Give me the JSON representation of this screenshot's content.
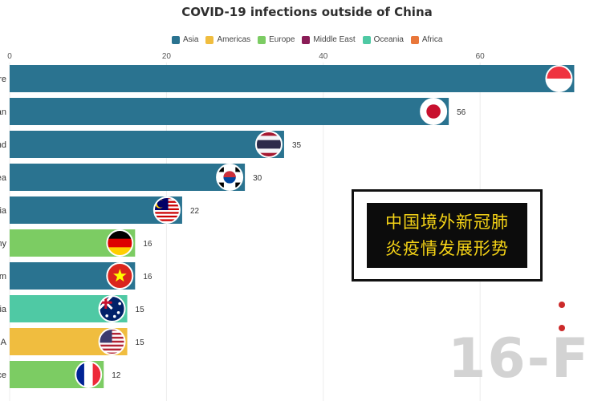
{
  "chart_data": {
    "type": "bar",
    "orientation": "horizontal",
    "title": "COVID-19 infections outside of China",
    "legend_position": "top",
    "legend": [
      {
        "name": "Asia",
        "color": "#2a7390"
      },
      {
        "name": "Americas",
        "color": "#f0bd3f"
      },
      {
        "name": "Europe",
        "color": "#7ccc63"
      },
      {
        "name": "Middle East",
        "color": "#8a1c57"
      },
      {
        "name": "Oceania",
        "color": "#4fc9a4"
      },
      {
        "name": "Africa",
        "color": "#e9773a"
      }
    ],
    "xlim": [
      0,
      72
    ],
    "x_ticks": [
      "0",
      "20",
      "40",
      "60"
    ],
    "x_tick_values": [
      0,
      20,
      40,
      60
    ],
    "categories": [
      "re",
      "an",
      "nd",
      "ea",
      "ia",
      "ny",
      "am",
      "ia",
      "A",
      "ce"
    ],
    "values": [
      72,
      56,
      35,
      30,
      22,
      16,
      16,
      15,
      15,
      12
    ],
    "value_labels": [
      "",
      "56",
      "35",
      "30",
      "22",
      "16",
      "16",
      "15",
      "15",
      "12"
    ],
    "regions": [
      "Asia",
      "Asia",
      "Asia",
      "Asia",
      "Asia",
      "Europe",
      "Asia",
      "Oceania",
      "Americas",
      "Europe"
    ],
    "flags": [
      "singapore-flag",
      "japan-flag",
      "thailand-flag",
      "south-korea-flag",
      "malaysia-flag",
      "germany-flag",
      "vietnam-flag",
      "australia-flag",
      "usa-flag",
      "france-flag"
    ]
  },
  "overlay": {
    "line1": "中国境外新冠肺",
    "line2": "炎疫情发展形势"
  },
  "date_label": "16-F"
}
